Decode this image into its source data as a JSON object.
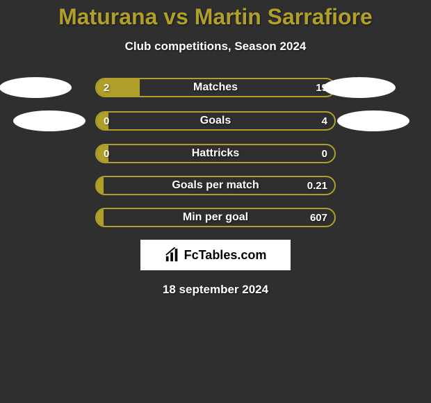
{
  "title": "Maturana vs Martin Sarrafiore",
  "subtitle": "Club competitions, Season 2024",
  "date": "18 september 2024",
  "logo": {
    "text": "FcTables.com"
  },
  "colors": {
    "accent": "#b0a02b",
    "background": "#2f2f2f",
    "oval": "#ffffff",
    "text": "#ffffff"
  },
  "rows": [
    {
      "metric": "Matches",
      "left": "2",
      "right": "19",
      "fill_pct": 18,
      "show_ovals": true,
      "oval_left_offset": -26,
      "oval_right_offset": -26
    },
    {
      "metric": "Goals",
      "left": "0",
      "right": "4",
      "fill_pct": 5,
      "show_ovals": true,
      "oval_left_offset": -6,
      "oval_right_offset": -6
    },
    {
      "metric": "Hattricks",
      "left": "0",
      "right": "0",
      "fill_pct": 5,
      "show_ovals": false
    },
    {
      "metric": "Goals per match",
      "left": "",
      "right": "0.21",
      "fill_pct": 3,
      "show_ovals": false
    },
    {
      "metric": "Min per goal",
      "left": "",
      "right": "607",
      "fill_pct": 3,
      "show_ovals": false
    }
  ]
}
